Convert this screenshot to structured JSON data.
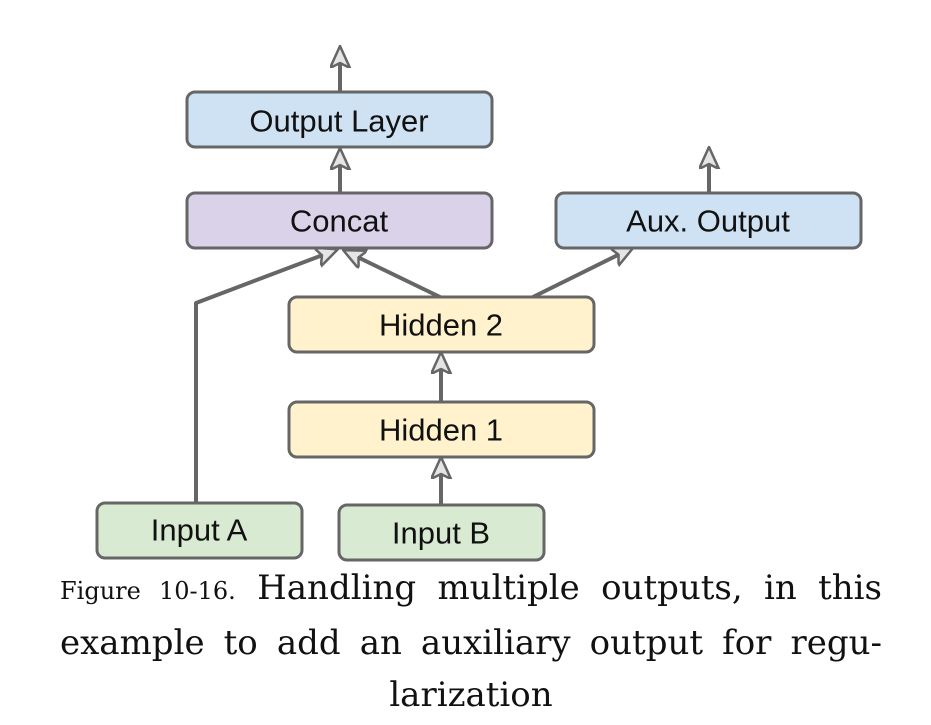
{
  "diagram": {
    "nodes": {
      "output_layer": {
        "label": "Output Layer",
        "fill": "#cfe2f3"
      },
      "concat": {
        "label": "Concat",
        "fill": "#d9d2e9"
      },
      "aux_output": {
        "label": "Aux. Output",
        "fill": "#cfe2f3"
      },
      "hidden2": {
        "label": "Hidden 2",
        "fill": "#fff2cc"
      },
      "hidden1": {
        "label": "Hidden 1",
        "fill": "#fff2cc"
      },
      "input_a": {
        "label": "Input A",
        "fill": "#d9ead3"
      },
      "input_b": {
        "label": "Input B",
        "fill": "#d9ead3"
      }
    },
    "edge_color": "#666666",
    "node_border_color": "#666666"
  },
  "caption": {
    "label": "Figure 10-16.",
    "text": "Handling multiple outputs, in this example to add an auxiliary output for regu-larization"
  }
}
